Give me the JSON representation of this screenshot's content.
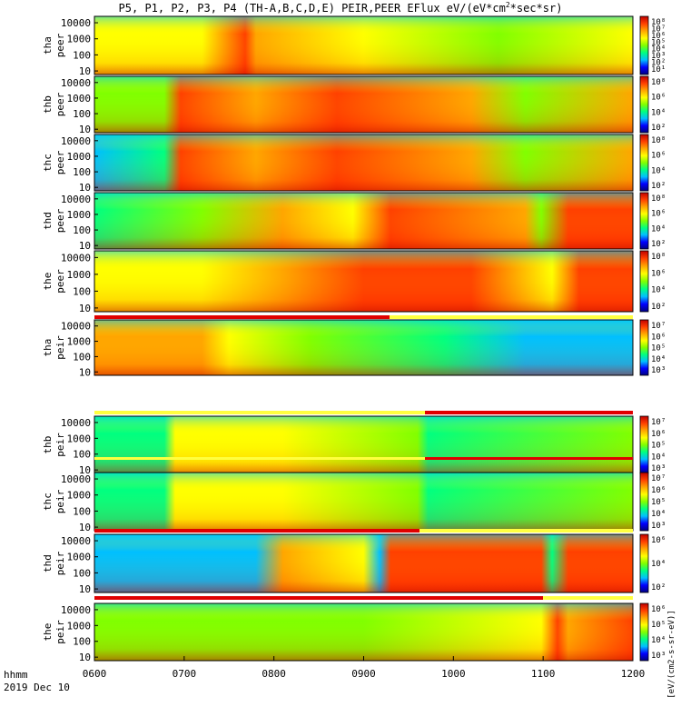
{
  "title": {
    "main": "P5, P1, P2, P3, P4 (TH-A,B,C,D,E) PEIR,PEER EFlux eV/(eV*cm",
    "sup": "2",
    "tail": "*sec*sr)"
  },
  "colorbar_unit": "[eV/(cm2-s-sr-eV)]",
  "colors": {
    "spectrum": [
      "#000080",
      "#0000ff",
      "#00bfff",
      "#00ff80",
      "#80ff00",
      "#ffff00",
      "#ffa500",
      "#ff4000",
      "#c00000"
    ],
    "bar_red": "#e00000",
    "bar_yellow": "#ffff40"
  },
  "chart_data": {
    "type": "heatmap",
    "scale": "log",
    "x_label_1": "hhmm",
    "x_label_2": "2019 Dec 10",
    "x_range": [
      "0600",
      "1200"
    ],
    "x_ticks": [
      "0600",
      "0700",
      "0800",
      "0900",
      "1000",
      "1100",
      "1200"
    ],
    "panels": [
      {
        "probe": "tha",
        "species": "peer",
        "y_ticks": [
          "10000",
          "1000",
          "100",
          "10"
        ],
        "cb_ticks": [
          "10⁸",
          "10⁷",
          "10⁶",
          "10⁵",
          "10⁴",
          "10³",
          "10²",
          "10¹"
        ]
      },
      {
        "probe": "thb",
        "species": "peer",
        "y_ticks": [
          "10000",
          "1000",
          "100",
          "10"
        ],
        "cb_ticks": [
          "10⁸",
          "10⁶",
          "10⁴",
          "10²"
        ]
      },
      {
        "probe": "thc",
        "species": "peer",
        "y_ticks": [
          "10000",
          "1000",
          "100",
          "10"
        ],
        "cb_ticks": [
          "10⁸",
          "10⁶",
          "10⁴",
          "10²"
        ]
      },
      {
        "probe": "thd",
        "species": "peer",
        "y_ticks": [
          "10000",
          "1000",
          "100",
          "10"
        ],
        "cb_ticks": [
          "10⁸",
          "10⁶",
          "10⁴",
          "10²"
        ]
      },
      {
        "probe": "the",
        "species": "peer",
        "y_ticks": [
          "10000",
          "1000",
          "100",
          "10"
        ],
        "cb_ticks": [
          "10⁸",
          "10⁶",
          "10⁴",
          "10²"
        ]
      },
      {
        "probe": "tha",
        "species": "peir",
        "y_ticks": [
          "10000",
          "1000",
          "100",
          "10"
        ],
        "cb_ticks": [
          "10⁷",
          "10⁶",
          "10⁵",
          "10⁴",
          "10³"
        ]
      },
      {
        "probe": "thb",
        "species": "peir",
        "y_ticks": [
          "10000",
          "1000",
          "100",
          "10"
        ],
        "cb_ticks": [
          "10⁷",
          "10⁶",
          "10⁵",
          "10⁴",
          "10³"
        ]
      },
      {
        "probe": "thc",
        "species": "peir",
        "y_ticks": [
          "10000",
          "1000",
          "100",
          "10"
        ],
        "cb_ticks": [
          "10⁷",
          "10⁶",
          "10⁵",
          "10⁴",
          "10³"
        ]
      },
      {
        "probe": "thd",
        "species": "peir",
        "y_ticks": [
          "10000",
          "1000",
          "100",
          "10"
        ],
        "cb_ticks": [
          "10⁶",
          "10⁴",
          "10²"
        ]
      },
      {
        "probe": "the",
        "species": "peir",
        "y_ticks": [
          "10000",
          "1000",
          "100",
          "10"
        ],
        "cb_ticks": [
          "10⁶",
          "10⁵",
          "10⁴",
          "10³"
        ]
      }
    ]
  }
}
